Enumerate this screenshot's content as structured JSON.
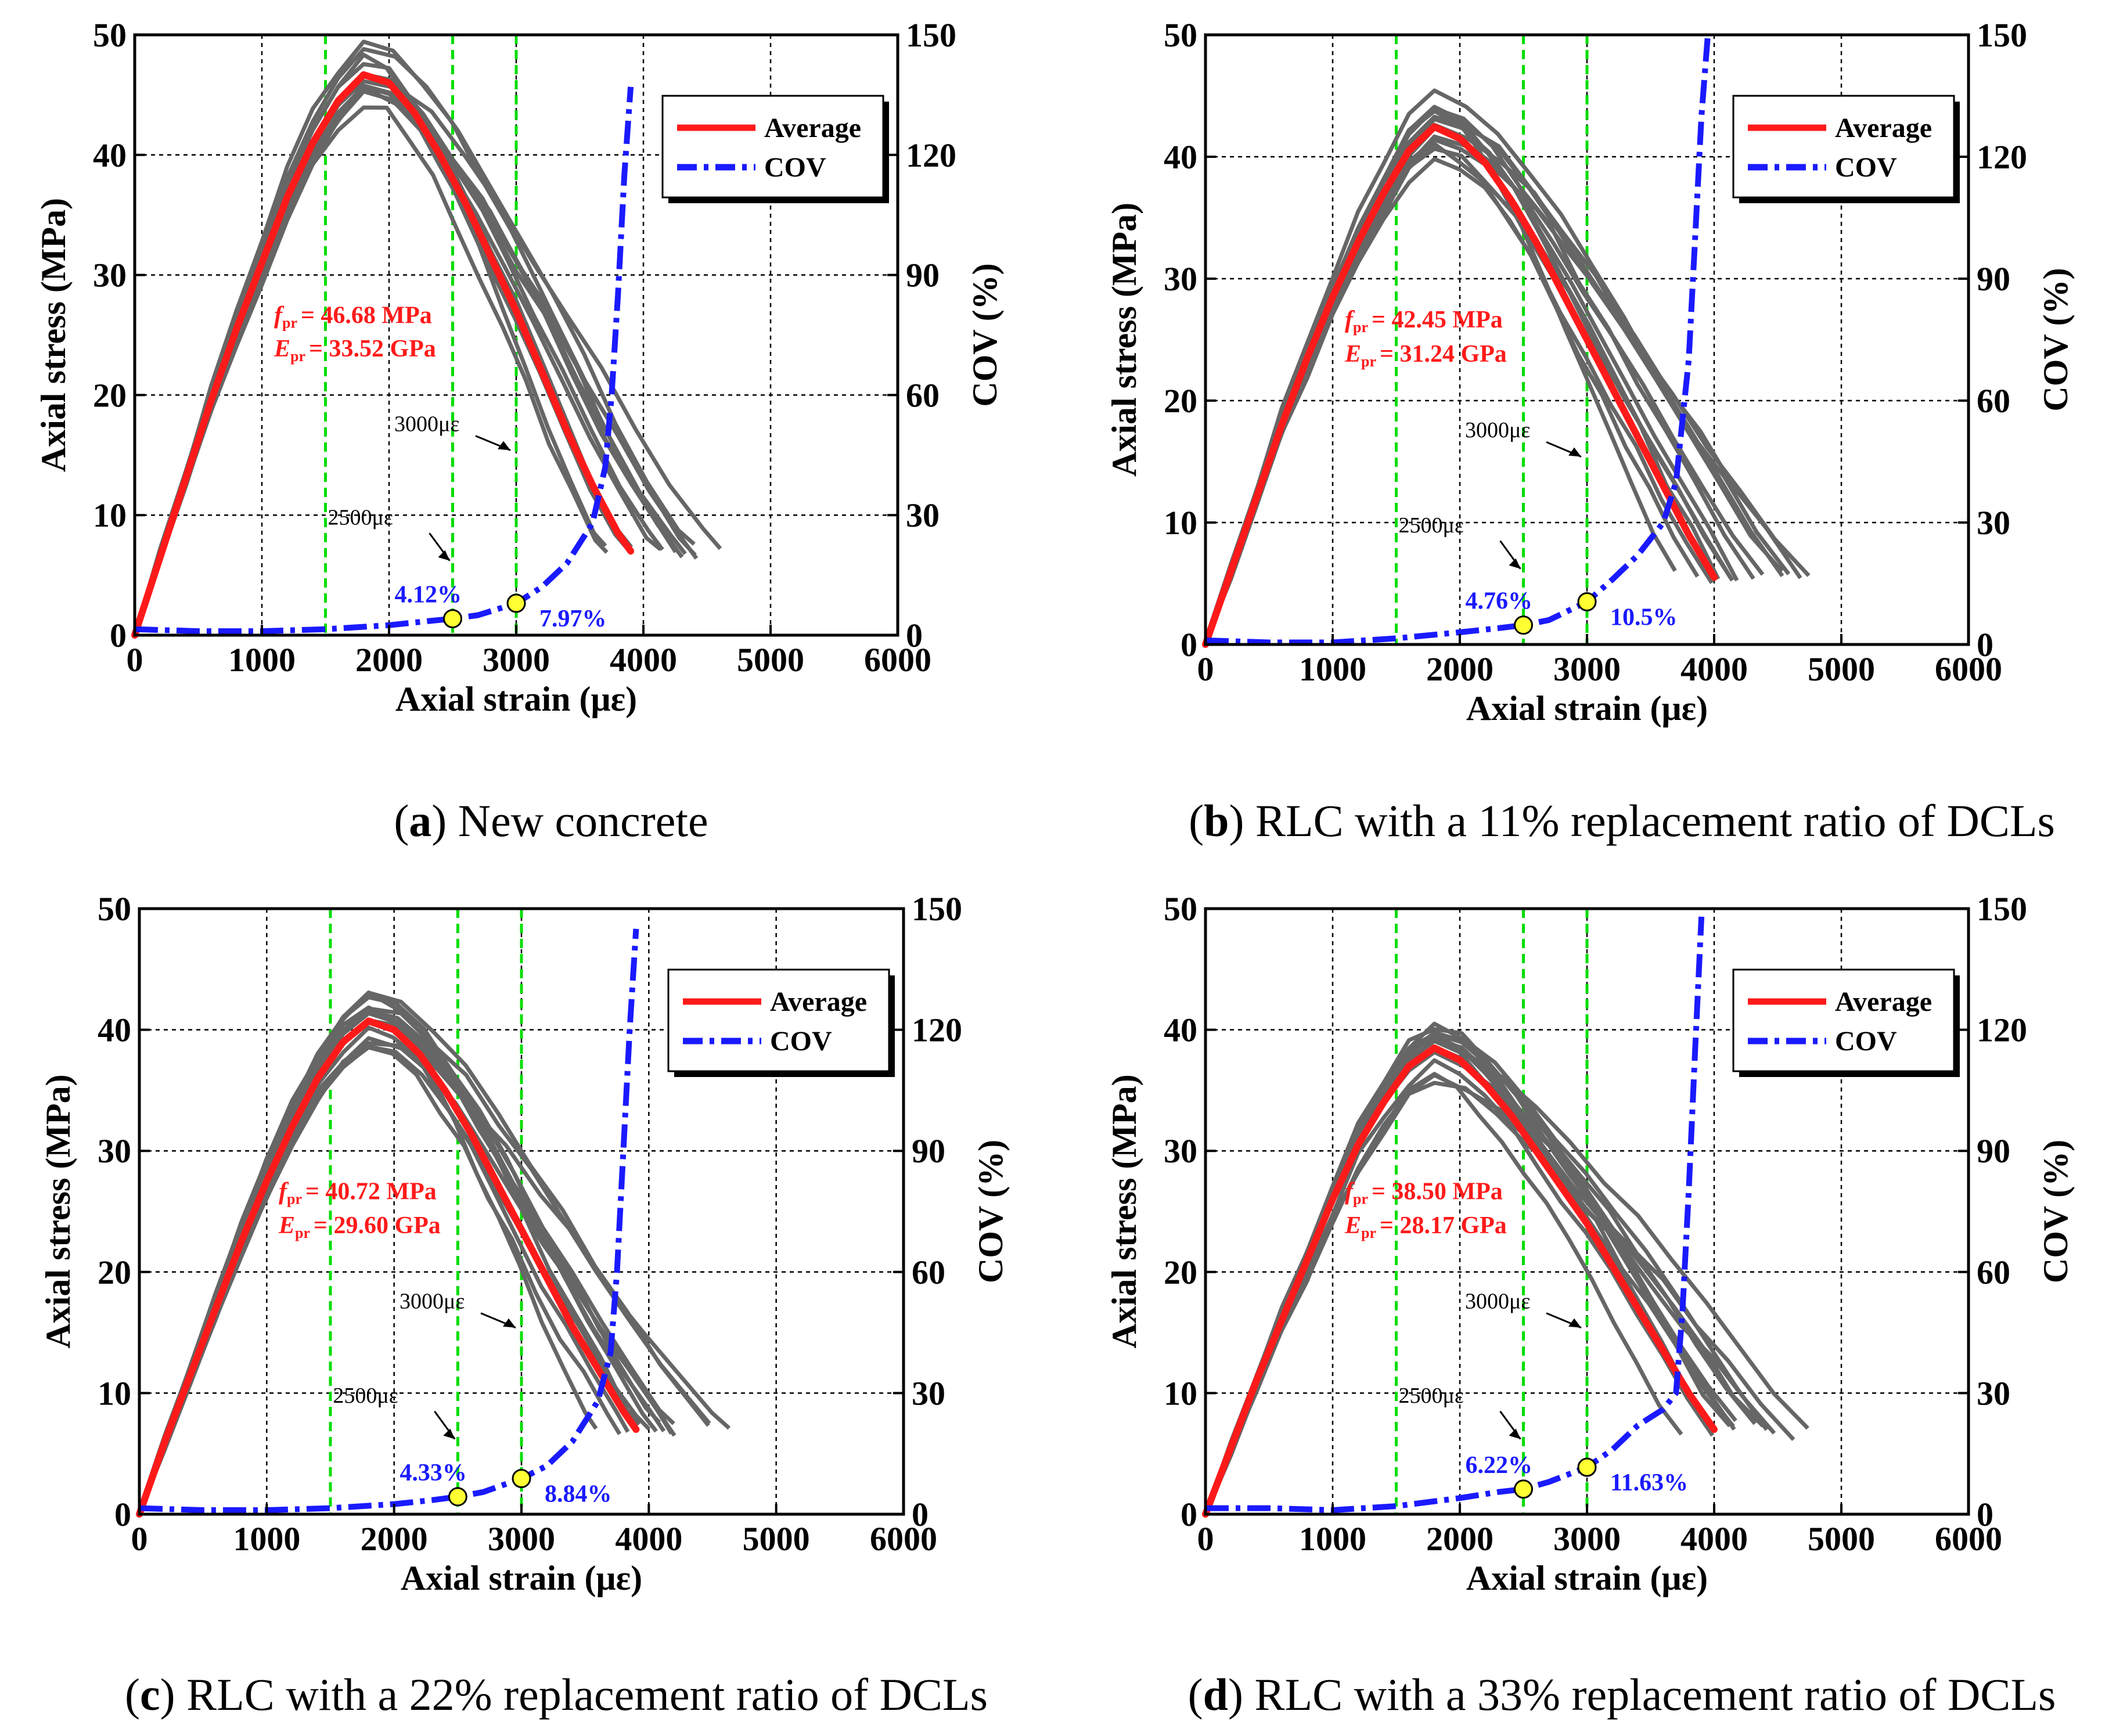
{
  "caption_prefix_open": "(",
  "caption_prefix_close": ")",
  "common": {
    "xlabel": "Axial strain (με)",
    "ylabel_left": "Axial stress (MPa)",
    "ylabel_right": "COV (%)",
    "legend": [
      {
        "name": "Average",
        "color": "#ff1a1a",
        "style": "solid"
      },
      {
        "name": "COV",
        "color": "#1a1aff",
        "style": "dashdot"
      }
    ],
    "xlim": [
      0,
      6000
    ],
    "ylim_left": [
      0,
      50
    ],
    "ylim_right": [
      0,
      150
    ],
    "xticks": [
      "0",
      "1000",
      "2000",
      "3000",
      "4000",
      "5000",
      "6000"
    ],
    "yticks_left": [
      "0",
      "10",
      "20",
      "30",
      "40",
      "50"
    ],
    "yticks_right": [
      "0",
      "30",
      "60",
      "90",
      "120",
      "150"
    ],
    "label_3000": "3000με",
    "label_2500": "2500με",
    "f_label": "f",
    "f_sub": "pr",
    "e_label": "E",
    "e_sub": "pr",
    "grid": true,
    "legend_position": "top-right",
    "colors": {
      "average": "#ff1a1a",
      "cov": "#1a1aff",
      "samples": "#666666",
      "green_lines": "#00dd00",
      "marker": "#ffff33"
    }
  },
  "chart_data": [
    {
      "type": "line",
      "letter": "a",
      "caption": "New concrete",
      "f_value": "= 46.68 MPa",
      "e_value": "= 33.52 GPa",
      "cov_labels": [
        "4.12%",
        "7.97%"
      ],
      "markers": [
        {
          "x": 2500,
          "cov": 4.12
        },
        {
          "x": 3000,
          "cov": 7.97
        }
      ],
      "green_lines_x": [
        1500,
        2500,
        3000
      ],
      "series": [
        {
          "name": "Average",
          "axis": "left",
          "x": [
            0,
            200,
            400,
            600,
            800,
            1000,
            1200,
            1400,
            1600,
            1800,
            2000,
            2200,
            2400,
            2600,
            2800,
            3000,
            3200,
            3400,
            3600,
            3800,
            3900
          ],
          "y": [
            0,
            6.5,
            13,
            19.5,
            25.5,
            31,
            36.5,
            41,
            44.5,
            46.68,
            46,
            43.5,
            40,
            36,
            31.5,
            27,
            22,
            17,
            12.5,
            8.5,
            7
          ]
        },
        {
          "name": "COV",
          "axis": "right",
          "x": [
            0,
            500,
            1000,
            1500,
            2000,
            2300,
            2500,
            2700,
            3000,
            3200,
            3400,
            3600,
            3700,
            3750,
            3800,
            3850,
            3900
          ],
          "y": [
            1.5,
            1,
            1,
            1.5,
            2.5,
            3.5,
            4.12,
            5,
            7.97,
            12,
            18,
            28,
            42,
            60,
            85,
            115,
            137
          ]
        }
      ]
    },
    {
      "type": "line",
      "letter": "b",
      "caption": "RLC with a 11% replacement ratio of DCLs",
      "f_value": "= 42.45 MPa",
      "e_value": "= 31.24 GPa",
      "cov_labels": [
        "4.76%",
        "10.5%"
      ],
      "markers": [
        {
          "x": 2500,
          "cov": 4.76
        },
        {
          "x": 3000,
          "cov": 10.5
        }
      ],
      "green_lines_x": [
        1500,
        2500,
        3000
      ],
      "series": [
        {
          "name": "Average",
          "axis": "left",
          "x": [
            0,
            200,
            400,
            600,
            800,
            1000,
            1200,
            1400,
            1600,
            1800,
            2000,
            2200,
            2400,
            2600,
            2800,
            3000,
            3200,
            3400,
            3600,
            3800,
            4000
          ],
          "y": [
            0,
            6,
            12,
            18,
            23.5,
            28.5,
            33,
            37,
            40.5,
            42.45,
            41.5,
            39.5,
            36.5,
            33,
            29,
            25,
            21,
            17,
            13,
            9,
            5.5
          ]
        },
        {
          "name": "COV",
          "axis": "right",
          "x": [
            0,
            500,
            1000,
            1500,
            2000,
            2300,
            2500,
            2700,
            3000,
            3200,
            3400,
            3600,
            3700,
            3800,
            3850,
            3900,
            3950
          ],
          "y": [
            1,
            0.5,
            0.5,
            1.5,
            3,
            4,
            4.76,
            6,
            10.5,
            16,
            22,
            30,
            40,
            70,
            100,
            130,
            150
          ]
        }
      ]
    },
    {
      "type": "line",
      "letter": "c",
      "caption": "RLC with a 22% replacement ratio of DCLs",
      "f_value": "= 40.72 MPa",
      "e_value": "= 29.60 GPa",
      "cov_labels": [
        "4.33%",
        "8.84%"
      ],
      "markers": [
        {
          "x": 2500,
          "cov": 4.33
        },
        {
          "x": 3000,
          "cov": 8.84
        }
      ],
      "green_lines_x": [
        1500,
        2500,
        3000
      ],
      "series": [
        {
          "name": "Average",
          "axis": "left",
          "x": [
            0,
            200,
            400,
            600,
            800,
            1000,
            1200,
            1400,
            1600,
            1800,
            2000,
            2200,
            2400,
            2600,
            2800,
            3000,
            3200,
            3400,
            3600,
            3800,
            3900
          ],
          "y": [
            0,
            6,
            11.5,
            17,
            22.5,
            27.5,
            32,
            36,
            39,
            40.72,
            40,
            38,
            35,
            31.5,
            27.5,
            23.5,
            19.5,
            15.5,
            12,
            8.5,
            7
          ]
        },
        {
          "name": "COV",
          "axis": "right",
          "x": [
            0,
            500,
            1000,
            1500,
            2000,
            2300,
            2500,
            2700,
            3000,
            3200,
            3400,
            3600,
            3700,
            3750,
            3800,
            3850,
            3900
          ],
          "y": [
            1.5,
            1,
            1,
            1.5,
            2.5,
            3.5,
            4.33,
            5.5,
            8.84,
            12,
            18,
            28,
            40,
            60,
            90,
            120,
            145
          ]
        }
      ]
    },
    {
      "type": "line",
      "letter": "d",
      "caption": "RLC with a 33% replacement ratio of DCLs",
      "f_value": "= 38.50 MPa",
      "e_value": "= 28.17 GPa",
      "cov_labels": [
        "6.22%",
        "11.63%"
      ],
      "markers": [
        {
          "x": 2500,
          "cov": 6.22
        },
        {
          "x": 3000,
          "cov": 11.63
        }
      ],
      "green_lines_x": [
        1500,
        2500,
        3000
      ],
      "series": [
        {
          "name": "Average",
          "axis": "left",
          "x": [
            0,
            200,
            400,
            600,
            800,
            1000,
            1200,
            1400,
            1600,
            1800,
            2000,
            2200,
            2400,
            2600,
            2800,
            3000,
            3200,
            3400,
            3600,
            3800,
            4000
          ],
          "y": [
            0,
            5.5,
            11,
            16,
            21,
            26,
            30.5,
            34,
            37,
            38.5,
            37.5,
            35.5,
            33,
            30,
            27,
            24,
            20.5,
            17,
            13.5,
            10,
            7
          ]
        },
        {
          "name": "COV",
          "axis": "right",
          "x": [
            0,
            500,
            1000,
            1500,
            2000,
            2300,
            2500,
            2700,
            3000,
            3200,
            3400,
            3600,
            3700,
            3750,
            3800,
            3850,
            3900
          ],
          "y": [
            1.5,
            1.5,
            1,
            2,
            4,
            5.5,
            6.22,
            8,
            11.63,
            16,
            22,
            26,
            30,
            50,
            80,
            115,
            148
          ]
        }
      ]
    }
  ]
}
